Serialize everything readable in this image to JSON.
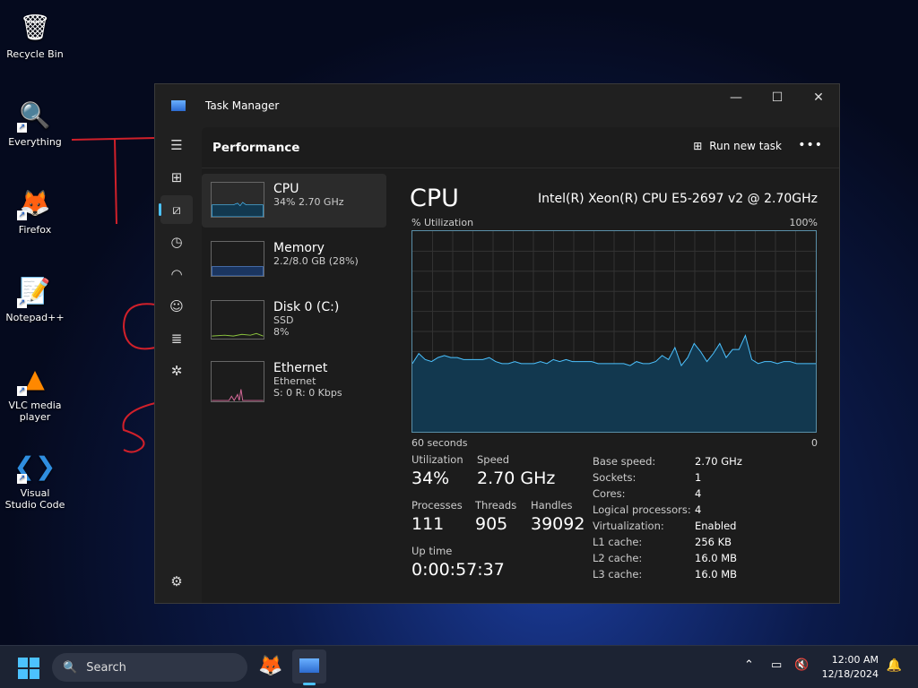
{
  "desktop": {
    "icons": [
      "Recycle Bin",
      "Everything",
      "Firefox",
      "Notepad++",
      "VLC media player",
      "Visual Studio Code"
    ]
  },
  "window": {
    "title": "Task Manager",
    "minimize": "—",
    "maximize": "☐",
    "close": "✕"
  },
  "header": {
    "title": "Performance",
    "run_new_task": "Run new task",
    "more": "•••"
  },
  "sidebar": {
    "icons": [
      "hamburger-icon",
      "processes-icon",
      "performance-icon",
      "app-history-icon",
      "startup-icon",
      "users-icon",
      "details-icon",
      "services-icon",
      "settings-icon"
    ]
  },
  "devices": [
    {
      "name": "CPU",
      "line1": "34% 2.70 GHz",
      "line2": ""
    },
    {
      "name": "Memory",
      "line1": "2.2/8.0 GB (28%)",
      "line2": ""
    },
    {
      "name": "Disk 0 (C:)",
      "line1": "SSD",
      "line2": "8%"
    },
    {
      "name": "Ethernet",
      "line1": "Ethernet",
      "line2": "S: 0 R: 0 Kbps"
    }
  ],
  "cpu": {
    "title": "CPU",
    "model": "Intel(R) Xeon(R) CPU E5-2697 v2 @ 2.70GHz",
    "y_label": "% Utilization",
    "y_max_label": "100%",
    "x_left_label": "60 seconds",
    "x_right_label": "0",
    "stats": {
      "utilization_label": "Utilization",
      "utilization": "34%",
      "speed_label": "Speed",
      "speed": "2.70 GHz",
      "processes_label": "Processes",
      "processes": "111",
      "threads_label": "Threads",
      "threads": "905",
      "handles_label": "Handles",
      "handles": "39092",
      "uptime_label": "Up time",
      "uptime": "0:00:57:37"
    },
    "properties": [
      {
        "k": "Base speed:",
        "v": "2.70 GHz"
      },
      {
        "k": "Sockets:",
        "v": "1"
      },
      {
        "k": "Cores:",
        "v": "4"
      },
      {
        "k": "Logical processors:",
        "v": "4"
      },
      {
        "k": "Virtualization:",
        "v": "Enabled"
      },
      {
        "k": "L1 cache:",
        "v": "256 KB"
      },
      {
        "k": "L2 cache:",
        "v": "16.0 MB"
      },
      {
        "k": "L3 cache:",
        "v": "16.0 MB"
      }
    ],
    "history": [
      34,
      39,
      36,
      35,
      37,
      38,
      37,
      37,
      36,
      36,
      36,
      36,
      37,
      35,
      34,
      34,
      35,
      34,
      34,
      34,
      35,
      34,
      36,
      35,
      36,
      35,
      35,
      35,
      35,
      34,
      34,
      34,
      34,
      34,
      33,
      35,
      34,
      34,
      35,
      38,
      36,
      42,
      33,
      37,
      44,
      40,
      35,
      39,
      44,
      37,
      41,
      41,
      48,
      36,
      34,
      35,
      35,
      34,
      35,
      35,
      34,
      34,
      34,
      34
    ]
  },
  "taskbar": {
    "search": "Search",
    "time": "12:00 AM",
    "date": "12/18/2024"
  },
  "colors": {
    "cpu": "#4cc2ff",
    "cpu_fill": "#12384f",
    "disk": "#8dc63f",
    "net": "#d86a9a",
    "memory": "#2a5db0"
  }
}
